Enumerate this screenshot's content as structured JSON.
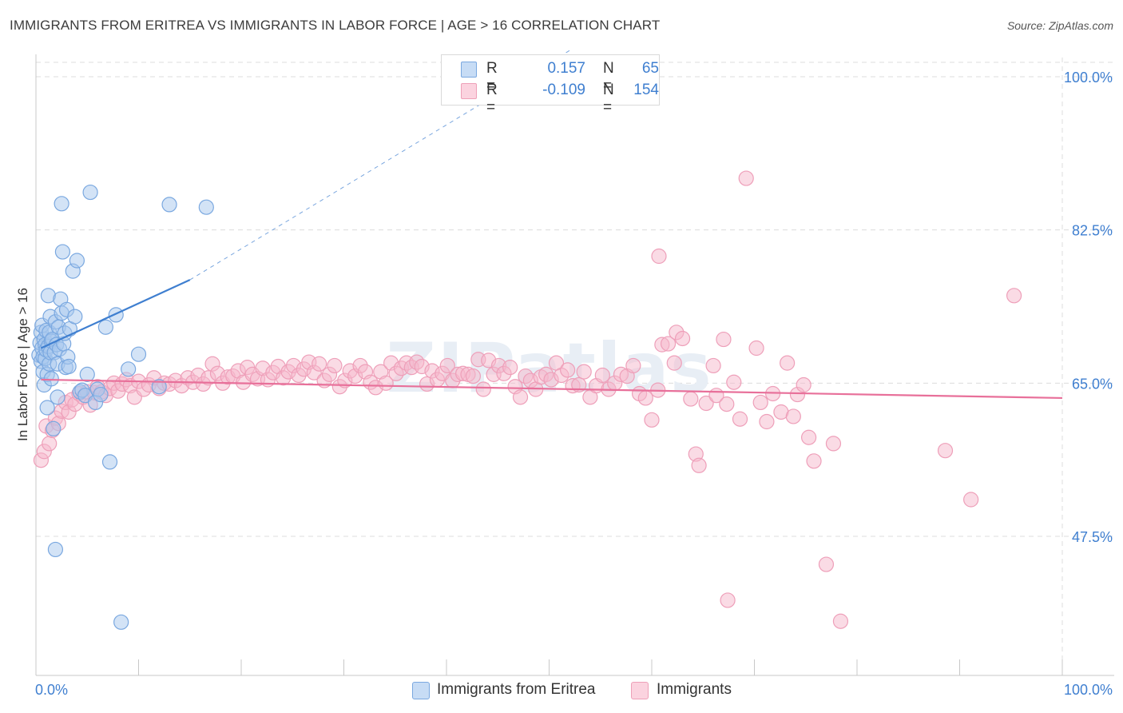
{
  "title": "IMMIGRANTS FROM ERITREA VS IMMIGRANTS IN LABOR FORCE | AGE > 16 CORRELATION CHART",
  "source": "Source: ZipAtlas.com",
  "watermark": "ZIPatlas",
  "legend_top": [
    {
      "r_label": "R =",
      "r_value": "0.157",
      "n_label": "N =",
      "n_value": "65",
      "color": "#a8c8ee"
    },
    {
      "r_label": "R =",
      "r_value": "-0.109",
      "n_label": "N =",
      "n_value": "154",
      "color": "#f5b8cb"
    }
  ],
  "legend_bottom": [
    {
      "label": "Immigrants from Eritrea",
      "color": "#a8c8ee"
    },
    {
      "label": "Immigrants",
      "color": "#f5b8cb"
    }
  ],
  "colors": {
    "blue": "#3f7fd0",
    "blue_fill": "#a8c8ee",
    "pink": "#e8709a",
    "pink_fill": "#f5b8cb",
    "grid": "#dcdcdc",
    "axis_label": "#3f7fd0"
  },
  "chart_data": {
    "type": "scatter",
    "title": "IMMIGRANTS FROM ERITREA VS IMMIGRANTS IN LABOR FORCE | AGE > 16 CORRELATION CHART",
    "xlabel": "",
    "ylabel": "In Labor Force | Age > 16",
    "xlim": [
      0,
      100
    ],
    "ylim": [
      30,
      105
    ],
    "x_tick_labels": [
      "0.0%",
      "100.0%"
    ],
    "y_ticks": [
      47.5,
      65.0,
      82.5,
      100.0
    ],
    "y_tick_labels": [
      "47.5%",
      "65.0%",
      "82.5%",
      "100.0%"
    ],
    "grid": true,
    "series": [
      {
        "name": "Immigrants from Eritrea",
        "color": "#3f7fd0",
        "trend": {
          "x": [
            0.5,
            15
          ],
          "y": [
            69.0,
            76.8
          ],
          "dashed_to": {
            "x": [
              15,
              52
            ],
            "y": [
              76.8,
              103.0
            ]
          }
        },
        "points": [
          {
            "x": 0.3,
            "y": 68.2
          },
          {
            "x": 0.4,
            "y": 69.6
          },
          {
            "x": 0.5,
            "y": 70.8
          },
          {
            "x": 0.5,
            "y": 67.5
          },
          {
            "x": 0.6,
            "y": 71.6
          },
          {
            "x": 0.6,
            "y": 69.0
          },
          {
            "x": 0.7,
            "y": 68.0
          },
          {
            "x": 0.7,
            "y": 66.3
          },
          {
            "x": 0.8,
            "y": 70.0
          },
          {
            "x": 0.8,
            "y": 64.8
          },
          {
            "x": 0.9,
            "y": 69.4
          },
          {
            "x": 0.9,
            "y": 67.8
          },
          {
            "x": 1.0,
            "y": 71.0
          },
          {
            "x": 1.0,
            "y": 68.8
          },
          {
            "x": 1.1,
            "y": 66.0
          },
          {
            "x": 1.1,
            "y": 62.2
          },
          {
            "x": 1.2,
            "y": 69.2
          },
          {
            "x": 1.2,
            "y": 75.0
          },
          {
            "x": 1.3,
            "y": 70.8
          },
          {
            "x": 1.3,
            "y": 67.2
          },
          {
            "x": 1.4,
            "y": 72.6
          },
          {
            "x": 1.4,
            "y": 68.5
          },
          {
            "x": 1.5,
            "y": 69.8
          },
          {
            "x": 1.5,
            "y": 65.5
          },
          {
            "x": 1.6,
            "y": 70.0
          },
          {
            "x": 1.7,
            "y": 59.8
          },
          {
            "x": 1.8,
            "y": 68.5
          },
          {
            "x": 1.9,
            "y": 72.0
          },
          {
            "x": 1.9,
            "y": 46.0
          },
          {
            "x": 2.0,
            "y": 69.4
          },
          {
            "x": 2.1,
            "y": 63.4
          },
          {
            "x": 2.1,
            "y": 67.2
          },
          {
            "x": 2.2,
            "y": 71.4
          },
          {
            "x": 2.3,
            "y": 68.9
          },
          {
            "x": 2.4,
            "y": 74.6
          },
          {
            "x": 2.5,
            "y": 73.0
          },
          {
            "x": 2.5,
            "y": 85.5
          },
          {
            "x": 2.6,
            "y": 80.0
          },
          {
            "x": 2.7,
            "y": 69.5
          },
          {
            "x": 2.8,
            "y": 70.7
          },
          {
            "x": 2.9,
            "y": 66.8
          },
          {
            "x": 3.0,
            "y": 73.4
          },
          {
            "x": 3.1,
            "y": 68.0
          },
          {
            "x": 3.2,
            "y": 66.9
          },
          {
            "x": 3.3,
            "y": 71.2
          },
          {
            "x": 3.6,
            "y": 77.8
          },
          {
            "x": 3.8,
            "y": 72.6
          },
          {
            "x": 4.0,
            "y": 79.0
          },
          {
            "x": 4.3,
            "y": 64.0
          },
          {
            "x": 4.5,
            "y": 64.2
          },
          {
            "x": 4.8,
            "y": 63.6
          },
          {
            "x": 5.0,
            "y": 66.0
          },
          {
            "x": 5.3,
            "y": 86.8
          },
          {
            "x": 5.8,
            "y": 62.8
          },
          {
            "x": 6.0,
            "y": 64.3
          },
          {
            "x": 6.3,
            "y": 63.7
          },
          {
            "x": 6.8,
            "y": 71.4
          },
          {
            "x": 7.2,
            "y": 56.0
          },
          {
            "x": 7.8,
            "y": 72.8
          },
          {
            "x": 8.3,
            "y": 37.7
          },
          {
            "x": 9.0,
            "y": 66.6
          },
          {
            "x": 10.0,
            "y": 68.3
          },
          {
            "x": 12.0,
            "y": 64.6
          },
          {
            "x": 13.0,
            "y": 85.4
          },
          {
            "x": 16.6,
            "y": 85.1
          }
        ]
      },
      {
        "name": "Immigrants",
        "color": "#e8709a",
        "trend": {
          "x": [
            0.5,
            100
          ],
          "y": [
            65.4,
            63.3
          ]
        },
        "points": [
          {
            "x": 0.5,
            "y": 56.2
          },
          {
            "x": 0.8,
            "y": 57.2
          },
          {
            "x": 1.0,
            "y": 60.1
          },
          {
            "x": 1.3,
            "y": 58.1
          },
          {
            "x": 1.6,
            "y": 59.6
          },
          {
            "x": 1.9,
            "y": 61.0
          },
          {
            "x": 2.2,
            "y": 60.4
          },
          {
            "x": 2.5,
            "y": 61.8
          },
          {
            "x": 2.9,
            "y": 62.8
          },
          {
            "x": 3.2,
            "y": 61.7
          },
          {
            "x": 3.5,
            "y": 63.1
          },
          {
            "x": 3.8,
            "y": 62.6
          },
          {
            "x": 4.2,
            "y": 63.8
          },
          {
            "x": 4.6,
            "y": 63.4
          },
          {
            "x": 5.0,
            "y": 64.0
          },
          {
            "x": 5.3,
            "y": 62.5
          },
          {
            "x": 5.7,
            "y": 63.9
          },
          {
            "x": 6.0,
            "y": 64.6
          },
          {
            "x": 6.4,
            "y": 64.0
          },
          {
            "x": 6.8,
            "y": 63.6
          },
          {
            "x": 7.2,
            "y": 64.4
          },
          {
            "x": 7.6,
            "y": 65.0
          },
          {
            "x": 8.0,
            "y": 64.1
          },
          {
            "x": 8.4,
            "y": 64.9
          },
          {
            "x": 8.8,
            "y": 65.4
          },
          {
            "x": 9.2,
            "y": 64.7
          },
          {
            "x": 9.6,
            "y": 63.4
          },
          {
            "x": 10.0,
            "y": 65.2
          },
          {
            "x": 10.5,
            "y": 64.3
          },
          {
            "x": 11.0,
            "y": 64.8
          },
          {
            "x": 11.5,
            "y": 65.6
          },
          {
            "x": 12.0,
            "y": 64.4
          },
          {
            "x": 12.5,
            "y": 65.0
          },
          {
            "x": 13.0,
            "y": 64.9
          },
          {
            "x": 13.6,
            "y": 65.3
          },
          {
            "x": 14.2,
            "y": 64.7
          },
          {
            "x": 14.8,
            "y": 65.6
          },
          {
            "x": 15.3,
            "y": 65.1
          },
          {
            "x": 15.8,
            "y": 65.9
          },
          {
            "x": 16.3,
            "y": 64.9
          },
          {
            "x": 16.8,
            "y": 65.6
          },
          {
            "x": 17.2,
            "y": 67.2
          },
          {
            "x": 17.7,
            "y": 66.1
          },
          {
            "x": 18.2,
            "y": 65.0
          },
          {
            "x": 18.7,
            "y": 65.7
          },
          {
            "x": 19.2,
            "y": 65.8
          },
          {
            "x": 19.7,
            "y": 66.4
          },
          {
            "x": 20.2,
            "y": 65.1
          },
          {
            "x": 20.6,
            "y": 66.8
          },
          {
            "x": 21.1,
            "y": 66.0
          },
          {
            "x": 21.6,
            "y": 65.5
          },
          {
            "x": 22.1,
            "y": 66.7
          },
          {
            "x": 22.6,
            "y": 65.4
          },
          {
            "x": 23.1,
            "y": 66.2
          },
          {
            "x": 23.6,
            "y": 66.9
          },
          {
            "x": 24.1,
            "y": 65.6
          },
          {
            "x": 24.6,
            "y": 66.3
          },
          {
            "x": 25.1,
            "y": 67.0
          },
          {
            "x": 25.6,
            "y": 65.9
          },
          {
            "x": 26.1,
            "y": 66.6
          },
          {
            "x": 26.6,
            "y": 67.4
          },
          {
            "x": 27.1,
            "y": 66.2
          },
          {
            "x": 27.6,
            "y": 67.2
          },
          {
            "x": 28.1,
            "y": 65.3
          },
          {
            "x": 28.6,
            "y": 66.0
          },
          {
            "x": 29.1,
            "y": 67.0
          },
          {
            "x": 29.6,
            "y": 64.6
          },
          {
            "x": 30.1,
            "y": 65.3
          },
          {
            "x": 30.6,
            "y": 66.4
          },
          {
            "x": 31.1,
            "y": 65.8
          },
          {
            "x": 31.6,
            "y": 67.0
          },
          {
            "x": 32.1,
            "y": 66.3
          },
          {
            "x": 32.6,
            "y": 65.1
          },
          {
            "x": 33.1,
            "y": 64.5
          },
          {
            "x": 33.6,
            "y": 66.3
          },
          {
            "x": 34.1,
            "y": 65.0
          },
          {
            "x": 34.6,
            "y": 67.3
          },
          {
            "x": 35.1,
            "y": 66.1
          },
          {
            "x": 35.6,
            "y": 66.7
          },
          {
            "x": 36.1,
            "y": 67.3
          },
          {
            "x": 36.6,
            "y": 66.8
          },
          {
            "x": 37.1,
            "y": 67.4
          },
          {
            "x": 37.6,
            "y": 66.9
          },
          {
            "x": 38.1,
            "y": 64.9
          },
          {
            "x": 38.6,
            "y": 66.4
          },
          {
            "x": 39.1,
            "y": 65.4
          },
          {
            "x": 39.6,
            "y": 66.1
          },
          {
            "x": 40.1,
            "y": 67.0
          },
          {
            "x": 40.6,
            "y": 65.3
          },
          {
            "x": 41.1,
            "y": 66.0
          },
          {
            "x": 41.6,
            "y": 66.1
          },
          {
            "x": 42.1,
            "y": 66.0
          },
          {
            "x": 42.6,
            "y": 65.8
          },
          {
            "x": 43.1,
            "y": 67.7
          },
          {
            "x": 43.6,
            "y": 64.3
          },
          {
            "x": 44.1,
            "y": 67.6
          },
          {
            "x": 44.6,
            "y": 66.0
          },
          {
            "x": 45.1,
            "y": 67.0
          },
          {
            "x": 45.6,
            "y": 66.1
          },
          {
            "x": 46.2,
            "y": 66.8
          },
          {
            "x": 46.7,
            "y": 64.6
          },
          {
            "x": 47.2,
            "y": 63.4
          },
          {
            "x": 47.7,
            "y": 65.8
          },
          {
            "x": 48.2,
            "y": 65.3
          },
          {
            "x": 48.7,
            "y": 64.3
          },
          {
            "x": 49.2,
            "y": 65.7
          },
          {
            "x": 49.7,
            "y": 66.0
          },
          {
            "x": 50.2,
            "y": 65.4
          },
          {
            "x": 50.7,
            "y": 67.3
          },
          {
            "x": 51.2,
            "y": 65.9
          },
          {
            "x": 51.8,
            "y": 66.5
          },
          {
            "x": 52.3,
            "y": 64.7
          },
          {
            "x": 52.9,
            "y": 64.8
          },
          {
            "x": 53.4,
            "y": 66.3
          },
          {
            "x": 54.0,
            "y": 63.4
          },
          {
            "x": 54.6,
            "y": 64.7
          },
          {
            "x": 55.2,
            "y": 65.9
          },
          {
            "x": 55.8,
            "y": 64.3
          },
          {
            "x": 56.4,
            "y": 65.0
          },
          {
            "x": 57.0,
            "y": 66.0
          },
          {
            "x": 57.6,
            "y": 65.8
          },
          {
            "x": 58.2,
            "y": 67.0
          },
          {
            "x": 58.8,
            "y": 63.8
          },
          {
            "x": 59.4,
            "y": 63.3
          },
          {
            "x": 60.0,
            "y": 60.8
          },
          {
            "x": 60.6,
            "y": 64.2
          },
          {
            "x": 61.0,
            "y": 69.4
          },
          {
            "x": 61.6,
            "y": 69.5
          },
          {
            "x": 62.2,
            "y": 67.3
          },
          {
            "x": 62.4,
            "y": 70.8
          },
          {
            "x": 63.0,
            "y": 70.1
          },
          {
            "x": 63.8,
            "y": 63.2
          },
          {
            "x": 64.3,
            "y": 56.9
          },
          {
            "x": 64.6,
            "y": 55.6
          },
          {
            "x": 65.3,
            "y": 62.7
          },
          {
            "x": 66.0,
            "y": 67.0
          },
          {
            "x": 66.3,
            "y": 63.6
          },
          {
            "x": 67.0,
            "y": 70.0
          },
          {
            "x": 67.3,
            "y": 62.6
          },
          {
            "x": 68.0,
            "y": 65.1
          },
          {
            "x": 68.6,
            "y": 60.9
          },
          {
            "x": 69.2,
            "y": 88.4
          },
          {
            "x": 70.2,
            "y": 69.0
          },
          {
            "x": 70.6,
            "y": 62.8
          },
          {
            "x": 71.2,
            "y": 60.6
          },
          {
            "x": 71.8,
            "y": 63.8
          },
          {
            "x": 72.6,
            "y": 61.7
          },
          {
            "x": 73.2,
            "y": 67.3
          },
          {
            "x": 73.8,
            "y": 61.2
          },
          {
            "x": 74.2,
            "y": 63.7
          },
          {
            "x": 74.8,
            "y": 64.8
          },
          {
            "x": 75.3,
            "y": 58.8
          },
          {
            "x": 75.8,
            "y": 56.1
          },
          {
            "x": 77.7,
            "y": 58.1
          },
          {
            "x": 67.4,
            "y": 40.2
          },
          {
            "x": 77.0,
            "y": 44.3
          },
          {
            "x": 78.4,
            "y": 37.8
          },
          {
            "x": 60.7,
            "y": 79.5
          },
          {
            "x": 88.6,
            "y": 57.3
          },
          {
            "x": 91.1,
            "y": 51.7
          },
          {
            "x": 95.3,
            "y": 75.0
          }
        ]
      }
    ]
  }
}
